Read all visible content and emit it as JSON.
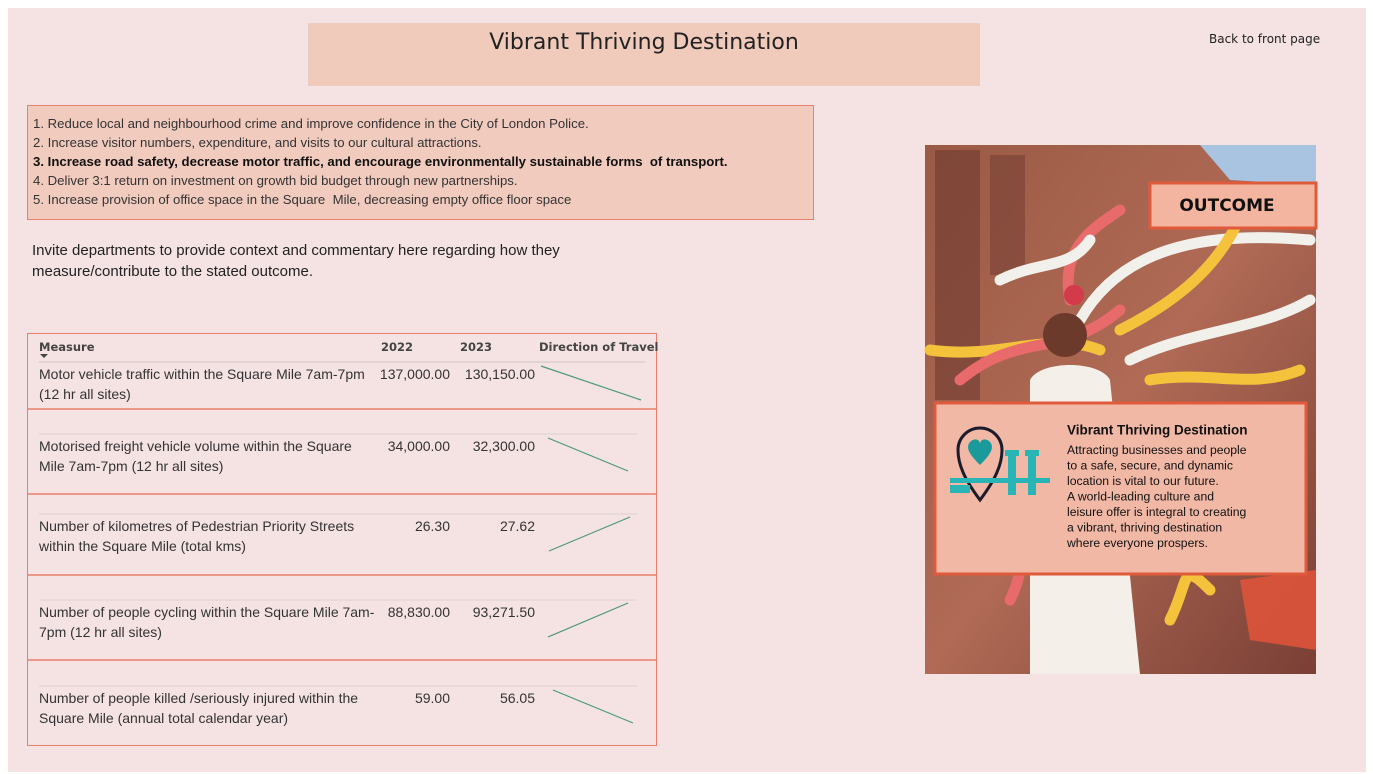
{
  "header": {
    "title": "Vibrant Thriving Destination",
    "back_link": "Back to front page"
  },
  "objectives": [
    "1. Reduce local and neighbourhood crime and improve confidence in the City of London Police.",
    "2. Increase visitor numbers, expenditure, and visits to our cultural attractions.",
    "3. Increase road safety, decrease motor traffic, and encourage environmentally sustainable forms  of transport.",
    "4. Deliver 3:1 return on investment on growth bid budget through new partnerships.",
    "5. Increase provision of office space in the Square  Mile, decreasing empty office floor space"
  ],
  "commentary": [
    "Invite departments to provide context and commentary here regarding how they",
    "measure/contribute to the stated outcome."
  ],
  "table": {
    "columns": [
      "Measure",
      "2022",
      "2023",
      "Direction of Travel"
    ],
    "rows": [
      [
        "Motor vehicle traffic within the Square Mile 7am-7pm (12 hr all sites)",
        "137,000.00",
        "130,150.00"
      ],
      [
        "Motorised freight vehicle volume within the Square Mile 7am-7pm (12 hr all sites)",
        "34,000.00",
        "32,300.00"
      ],
      [
        "Number of kilometres of Pedestrian Priority Streets within the Square Mile (total kms)",
        "26.30",
        "27.62"
      ],
      [
        "Number of people cycling within the Square Mile 7am-7pm (12 hr all sites)",
        "88,830.00",
        "93,271.50"
      ],
      [
        "Number of people killed /seriously injured within the Square Mile (annual total calendar year)",
        "59.00",
        "56.05"
      ]
    ]
  },
  "poster": {
    "badge": "OUTCOME",
    "heading": "Vibrant Thriving Destination",
    "body": [
      "Attracting businesses and people",
      "to a safe, secure, and dynamic",
      "location is vital to our future.",
      "A world-leading culture and",
      "leisure offer is integral to creating",
      "a vibrant, thriving destination",
      "where everyone prospers."
    ]
  }
}
